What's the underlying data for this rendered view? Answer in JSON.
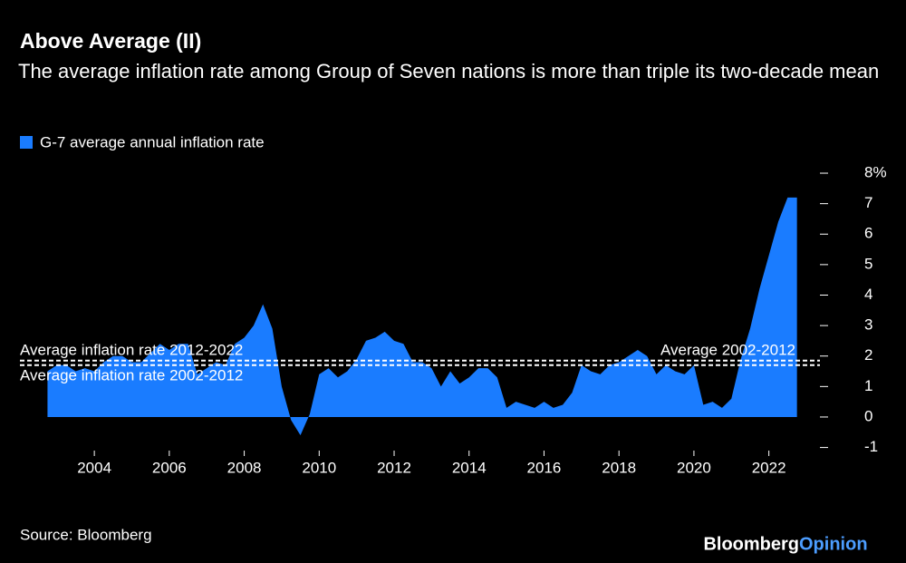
{
  "chart_data": {
    "type": "area",
    "title": "Above Average (II)",
    "subtitle": "The average inflation rate among Group of Seven nations is more than triple its two-decade mean",
    "x": [
      2002.75,
      2003,
      2003.25,
      2003.5,
      2003.75,
      2004,
      2004.25,
      2004.5,
      2004.75,
      2005,
      2005.25,
      2005.5,
      2005.75,
      2006,
      2006.25,
      2006.5,
      2006.75,
      2007,
      2007.25,
      2007.5,
      2007.75,
      2008,
      2008.25,
      2008.5,
      2008.75,
      2009,
      2009.25,
      2009.5,
      2009.75,
      2010,
      2010.25,
      2010.5,
      2010.75,
      2011,
      2011.25,
      2011.5,
      2011.75,
      2012,
      2012.25,
      2012.5,
      2012.75,
      2013,
      2013.25,
      2013.5,
      2013.75,
      2014,
      2014.25,
      2014.5,
      2014.75,
      2015,
      2015.25,
      2015.5,
      2015.75,
      2016,
      2016.25,
      2016.5,
      2016.75,
      2017,
      2017.25,
      2017.5,
      2017.75,
      2018,
      2018.25,
      2018.5,
      2018.75,
      2019,
      2019.25,
      2019.5,
      2019.75,
      2020,
      2020.25,
      2020.5,
      2020.75,
      2021,
      2021.25,
      2021.5,
      2021.75,
      2022,
      2022.25,
      2022.5,
      2022.75
    ],
    "series": [
      {
        "name": "G-7 average annual inflation rate",
        "color": "#1a7cff",
        "values": [
          1.5,
          1.7,
          1.7,
          1.5,
          1.6,
          1.5,
          1.8,
          2.0,
          2.0,
          1.8,
          1.8,
          2.1,
          2.4,
          2.2,
          2.4,
          2.4,
          1.4,
          1.6,
          1.8,
          1.7,
          2.4,
          2.6,
          3.0,
          3.7,
          2.9,
          1.0,
          -0.1,
          -0.6,
          0.1,
          1.4,
          1.6,
          1.3,
          1.5,
          1.9,
          2.5,
          2.6,
          2.8,
          2.5,
          2.4,
          1.8,
          1.8,
          1.6,
          1.0,
          1.5,
          1.1,
          1.3,
          1.6,
          1.6,
          1.3,
          0.3,
          0.5,
          0.4,
          0.3,
          0.5,
          0.3,
          0.4,
          0.8,
          1.7,
          1.5,
          1.4,
          1.7,
          1.8,
          2.0,
          2.2,
          2.0,
          1.4,
          1.7,
          1.5,
          1.4,
          1.7,
          0.4,
          0.5,
          0.3,
          0.6,
          1.9,
          2.9,
          4.2,
          5.3,
          6.4,
          7.2,
          7.2
        ]
      }
    ],
    "reference_lines": [
      {
        "value": 1.85,
        "label": "Average inflation rate 2012-2022"
      },
      {
        "value": 1.7,
        "label": "Average inflation rate 2002-2012"
      }
    ],
    "annotations": [
      "Average 2002-2012"
    ],
    "xlim": [
      2002,
      2023
    ],
    "xticks": [
      2004,
      2006,
      2008,
      2010,
      2012,
      2014,
      2016,
      2018,
      2020,
      2022
    ],
    "ylim": [
      -1.2,
      8.2
    ],
    "yticks": [
      -1,
      0,
      1,
      2,
      3,
      4,
      5,
      6,
      7,
      {
        "value": 8,
        "label": "8%"
      }
    ],
    "source": "Source: Bloomberg",
    "logo": [
      "Bloomberg",
      "Opinion"
    ]
  }
}
